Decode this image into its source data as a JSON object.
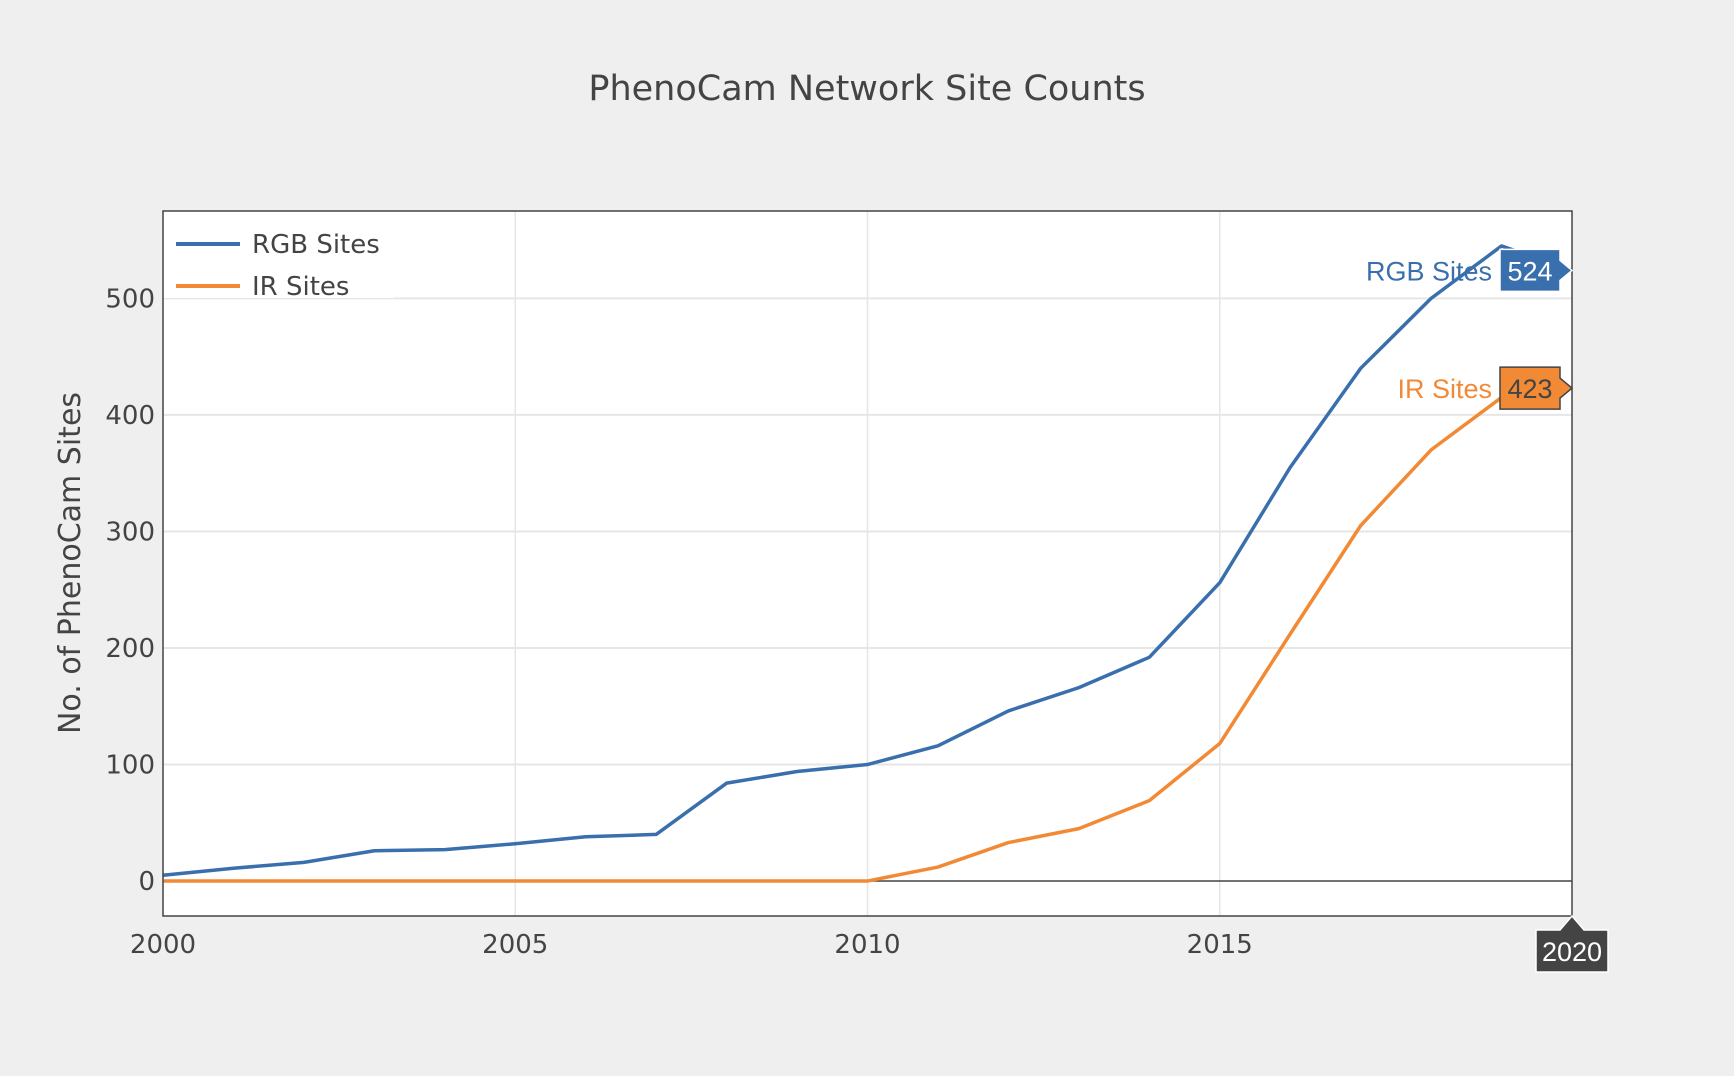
{
  "chart_data": {
    "type": "line",
    "title": "PhenoCam Network Site Counts",
    "xlabel": "",
    "ylabel": "No. of PhenoCam Sites",
    "xlim": [
      2000,
      2020
    ],
    "ylim": [
      -30,
      575
    ],
    "x_ticks": [
      "2000",
      "2005",
      "2010",
      "2015"
    ],
    "y_ticks": [
      "0",
      "100",
      "200",
      "300",
      "400",
      "500"
    ],
    "x_tick_values": [
      2000,
      2005,
      2010,
      2015
    ],
    "y_tick_values": [
      0,
      100,
      200,
      300,
      400,
      500
    ],
    "grid": true,
    "legend_position": "top-left",
    "x": [
      2000,
      2001,
      2002,
      2003,
      2004,
      2005,
      2006,
      2007,
      2008,
      2009,
      2010,
      2011,
      2012,
      2013,
      2014,
      2015,
      2016,
      2017,
      2018,
      2019,
      2020
    ],
    "series": [
      {
        "name": "RGB Sites",
        "color": "#3a6fad",
        "values": [
          5,
          11,
          16,
          26,
          27,
          32,
          38,
          40,
          84,
          94,
          100,
          116,
          146,
          166,
          192,
          256,
          355,
          440,
          500,
          545,
          524
        ]
      },
      {
        "name": "IR Sites",
        "color": "#f28a35",
        "values": [
          0,
          0,
          0,
          0,
          0,
          0,
          0,
          0,
          0,
          0,
          0,
          12,
          33,
          45,
          69,
          118,
          212,
          305,
          370,
          415,
          423
        ]
      }
    ],
    "hover": {
      "x_label": "2020",
      "labels": [
        {
          "name": "RGB Sites",
          "value": "524"
        },
        {
          "name": "IR Sites",
          "value": "423"
        }
      ]
    }
  }
}
